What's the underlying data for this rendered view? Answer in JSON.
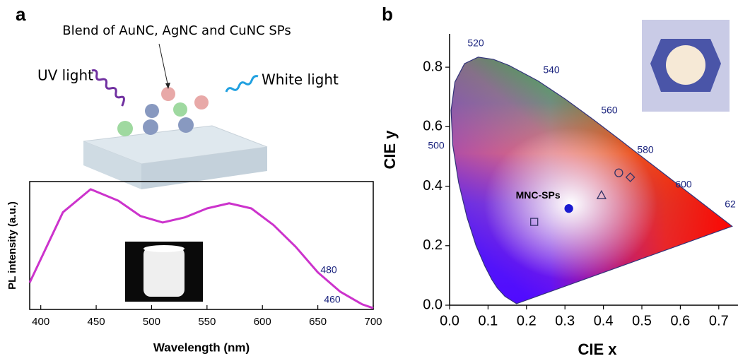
{
  "panels": {
    "a": "a",
    "b": "b"
  },
  "diagram": {
    "blend_label": "Blend of AuNC, AgNC and CuNC SPs",
    "uv_label": "UV light",
    "white_label": "White light"
  },
  "chart_data": [
    {
      "type": "line",
      "xlabel": "Wavelength (nm)",
      "ylabel": "PL intensity (a.u.)",
      "x": [
        390,
        420,
        445,
        470,
        490,
        510,
        530,
        550,
        570,
        590,
        610,
        630,
        650,
        670,
        690,
        700
      ],
      "series": [
        {
          "color": "#cc33cc",
          "values": [
            0.21,
            0.76,
            0.94,
            0.85,
            0.73,
            0.68,
            0.72,
            0.79,
            0.83,
            0.79,
            0.66,
            0.49,
            0.29,
            0.14,
            0.04,
            0.01
          ]
        }
      ],
      "xlim": [
        390,
        700
      ],
      "xticks": [
        400,
        450,
        500,
        550,
        600,
        650,
        700
      ],
      "ylim": [
        0,
        1
      ]
    },
    {
      "type": "cie",
      "xlabel": "CIE x",
      "ylabel": "CIE y",
      "xlim": [
        0,
        0.75
      ],
      "ylim": [
        0,
        0.9
      ],
      "xticks": [
        {
          "value": 0,
          "label": "0.0"
        },
        0.1,
        0.2,
        0.3,
        0.4,
        0.5,
        0.6,
        0.7
      ],
      "yticks": [
        {
          "value": 0,
          "label": "0.0"
        },
        0.2,
        0.4,
        0.6,
        0.8
      ],
      "locus_labels": [
        "460",
        "480",
        "500",
        "520",
        "540",
        "560",
        "580",
        "600",
        "62"
      ],
      "annotation": "MNC-SPs",
      "points": [
        {
          "x": 0.31,
          "y": 0.325,
          "marker": "circle-filled",
          "color": "#1a1ad0"
        },
        {
          "x": 0.22,
          "y": 0.28,
          "marker": "square",
          "color": "#333366"
        },
        {
          "x": 0.395,
          "y": 0.37,
          "marker": "triangle",
          "color": "#333366"
        },
        {
          "x": 0.44,
          "y": 0.445,
          "marker": "circle",
          "color": "#333366"
        },
        {
          "x": 0.47,
          "y": 0.43,
          "marker": "diamond",
          "color": "#333366"
        }
      ]
    }
  ]
}
